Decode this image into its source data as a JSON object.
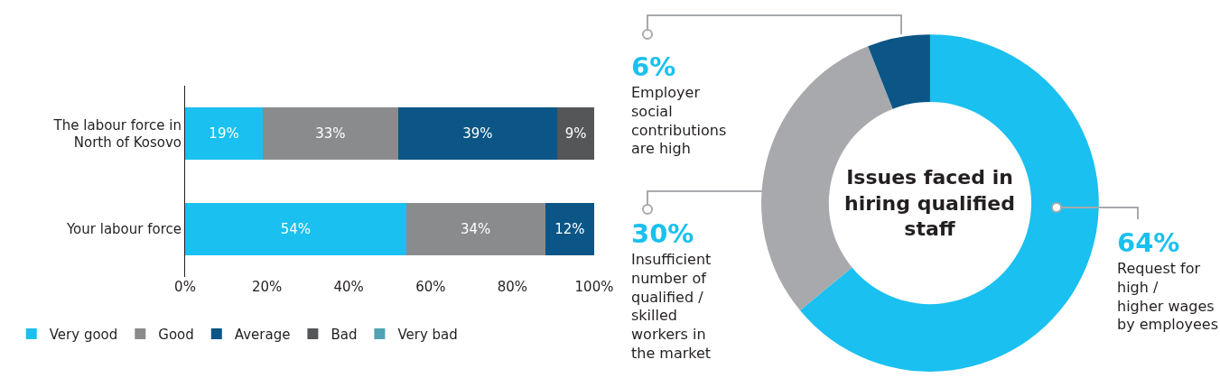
{
  "chart_data": [
    {
      "type": "bar",
      "orientation": "horizontal",
      "stacked": true,
      "categories": [
        "The labour force in North of Kosovo",
        "Your labour force"
      ],
      "series": [
        {
          "name": "Very good",
          "color": "#1ac0ef",
          "values": [
            19,
            54
          ],
          "value_labels": [
            "19%",
            "54%"
          ]
        },
        {
          "name": "Good",
          "color": "#8a8b8d",
          "values": [
            33,
            34
          ],
          "value_labels": [
            "33%",
            "34%"
          ]
        },
        {
          "name": "Average",
          "color": "#0b5686",
          "values": [
            39,
            12
          ],
          "value_labels": [
            "39%",
            "12%"
          ]
        },
        {
          "name": "Bad",
          "color": "#555657",
          "values": [
            9,
            null
          ],
          "value_labels": [
            "9%",
            null
          ]
        },
        {
          "name": "Very bad",
          "color": "#4fa3b4",
          "values": [
            null,
            null
          ],
          "value_labels": [
            null,
            null
          ]
        }
      ],
      "xlim": [
        0,
        100
      ],
      "xticks": [
        {
          "value": 0,
          "label": "0%"
        },
        {
          "value": 20,
          "label": "20%"
        },
        {
          "value": 40,
          "label": "40%"
        },
        {
          "value": 60,
          "label": "60%"
        },
        {
          "value": 80,
          "label": "80%"
        },
        {
          "value": 100,
          "label": "100%"
        }
      ],
      "grid": false,
      "legend": "bottom"
    },
    {
      "type": "donut",
      "title": "Issues faced in hiring qualified staff",
      "categories": [
        "Request for high / higher wages by employees",
        "Insufficient number of qualified / skilled workers in the market",
        "Employer social contributions are high"
      ],
      "values": [
        64,
        30,
        6
      ],
      "value_labels": [
        "64%",
        "30%",
        "6%"
      ],
      "colors": [
        "#1ac0ef",
        "#a7a9ac",
        "#0b5686"
      ],
      "legend": false
    }
  ]
}
